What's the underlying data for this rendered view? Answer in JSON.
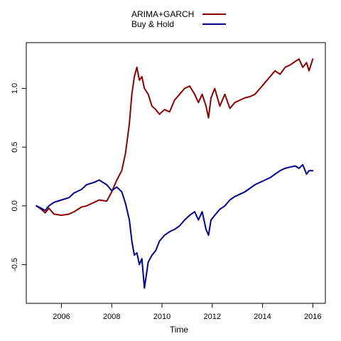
{
  "chart_data": {
    "type": "line",
    "title": "",
    "xlabel": "Time",
    "ylabel": "",
    "xlim": [
      2004.6,
      2016.5
    ],
    "ylim": [
      -0.83,
      1.39
    ],
    "xticks": [
      2006,
      2008,
      2010,
      2012,
      2014,
      2016
    ],
    "xtick_labels": [
      "2006",
      "2008",
      "2010",
      "2012",
      "2014",
      "2016"
    ],
    "yticks": [
      -0.5,
      0.0,
      0.5,
      1.0
    ],
    "ytick_labels": [
      "-0.5",
      "0.0",
      "0.5",
      "1.0"
    ],
    "grid": false,
    "legend_position": "top-center",
    "series": [
      {
        "name": "ARIMA+GARCH",
        "color": "#8b0000",
        "x": [
          2005.0,
          2005.2,
          2005.35,
          2005.5,
          2005.7,
          2006.0,
          2006.3,
          2006.5,
          2006.8,
          2007.0,
          2007.3,
          2007.5,
          2007.8,
          2008.0,
          2008.2,
          2008.4,
          2008.55,
          2008.7,
          2008.8,
          2008.9,
          2009.0,
          2009.1,
          2009.2,
          2009.3,
          2009.45,
          2009.6,
          2009.75,
          2009.9,
          2010.1,
          2010.3,
          2010.5,
          2010.7,
          2010.9,
          2011.1,
          2011.3,
          2011.45,
          2011.6,
          2011.75,
          2011.85,
          2011.95,
          2012.1,
          2012.3,
          2012.5,
          2012.7,
          2012.9,
          2013.1,
          2013.3,
          2013.5,
          2013.7,
          2013.9,
          2014.1,
          2014.3,
          2014.5,
          2014.7,
          2014.9,
          2015.1,
          2015.3,
          2015.45,
          2015.6,
          2015.75,
          2015.85,
          2016.0
        ],
        "y": [
          0.0,
          -0.03,
          -0.06,
          -0.02,
          -0.07,
          -0.08,
          -0.07,
          -0.05,
          -0.01,
          0.0,
          0.03,
          0.05,
          0.04,
          0.12,
          0.22,
          0.3,
          0.45,
          0.7,
          0.95,
          1.1,
          1.18,
          1.07,
          1.1,
          1.0,
          0.95,
          0.85,
          0.82,
          0.78,
          0.82,
          0.8,
          0.9,
          0.95,
          1.0,
          1.02,
          0.95,
          0.88,
          0.95,
          0.85,
          0.75,
          0.92,
          1.0,
          0.85,
          0.95,
          0.83,
          0.88,
          0.9,
          0.92,
          0.93,
          0.95,
          1.0,
          1.05,
          1.1,
          1.15,
          1.12,
          1.18,
          1.2,
          1.23,
          1.25,
          1.18,
          1.22,
          1.15,
          1.25
        ]
      },
      {
        "name": "Buy & Hold",
        "color": "#00008b",
        "x": [
          2005.0,
          2005.2,
          2005.35,
          2005.5,
          2005.7,
          2006.0,
          2006.3,
          2006.5,
          2006.8,
          2007.0,
          2007.3,
          2007.5,
          2007.8,
          2008.0,
          2008.2,
          2008.4,
          2008.55,
          2008.7,
          2008.8,
          2008.9,
          2009.0,
          2009.1,
          2009.2,
          2009.3,
          2009.45,
          2009.6,
          2009.75,
          2009.9,
          2010.1,
          2010.3,
          2010.5,
          2010.7,
          2010.9,
          2011.1,
          2011.3,
          2011.45,
          2011.6,
          2011.75,
          2011.85,
          2011.95,
          2012.1,
          2012.3,
          2012.5,
          2012.7,
          2012.9,
          2013.1,
          2013.3,
          2013.5,
          2013.7,
          2013.9,
          2014.1,
          2014.3,
          2014.5,
          2014.7,
          2014.9,
          2015.1,
          2015.3,
          2015.45,
          2015.6,
          2015.75,
          2015.85,
          2016.0
        ],
        "y": [
          0.0,
          -0.02,
          -0.04,
          0.0,
          0.03,
          0.05,
          0.07,
          0.11,
          0.14,
          0.18,
          0.2,
          0.22,
          0.18,
          0.13,
          0.16,
          0.12,
          0.02,
          -0.12,
          -0.3,
          -0.42,
          -0.4,
          -0.5,
          -0.45,
          -0.7,
          -0.48,
          -0.42,
          -0.38,
          -0.3,
          -0.25,
          -0.22,
          -0.2,
          -0.17,
          -0.12,
          -0.08,
          -0.05,
          -0.12,
          -0.05,
          -0.2,
          -0.25,
          -0.12,
          -0.08,
          -0.03,
          0.0,
          0.05,
          0.08,
          0.1,
          0.12,
          0.15,
          0.18,
          0.2,
          0.22,
          0.24,
          0.27,
          0.3,
          0.32,
          0.33,
          0.34,
          0.32,
          0.35,
          0.27,
          0.3,
          0.3
        ]
      }
    ]
  }
}
